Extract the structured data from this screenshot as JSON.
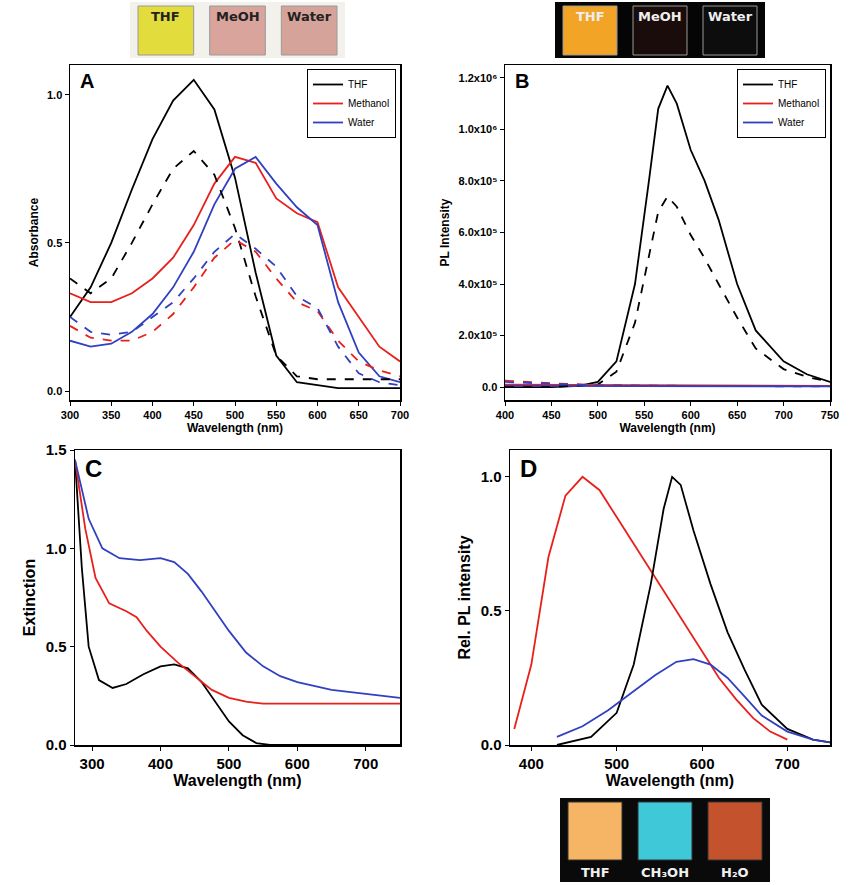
{
  "chart_data": [
    {
      "type": "line",
      "annotations": [
        "A"
      ],
      "x_label": "Wavelength (nm)",
      "y_label": "Absorbance",
      "photo": {
        "labels": [
          "THF",
          "MeOH",
          "Water"
        ],
        "colors": [
          "#e2dc3c",
          "#d9a49b",
          "#d6a39a"
        ]
      },
      "legend": "upper right",
      "xlim": [
        300,
        700
      ],
      "xticks": [
        300,
        350,
        400,
        450,
        500,
        550,
        600,
        650,
        700
      ],
      "ylim": [
        -0.03,
        1.1
      ],
      "yticks": [
        {
          "value": 0,
          "label": "0.0"
        },
        {
          "value": 0.5,
          "label": "0.5"
        },
        {
          "value": 1,
          "label": "1.0"
        }
      ],
      "series": [
        {
          "name": "THF",
          "color": "#000000",
          "line_style": "solid",
          "x": [
            300,
            325,
            350,
            375,
            400,
            425,
            450,
            475,
            500,
            525,
            550,
            575,
            600,
            625,
            650,
            675,
            700
          ],
          "values": [
            0.25,
            0.35,
            0.5,
            0.68,
            0.85,
            0.98,
            1.05,
            0.95,
            0.72,
            0.4,
            0.12,
            0.03,
            0.02,
            0.01,
            0.01,
            0.01,
            0.01
          ]
        },
        {
          "name": "Methanol",
          "color": "#e8201c",
          "line_style": "solid",
          "x": [
            300,
            325,
            350,
            375,
            400,
            425,
            450,
            475,
            500,
            525,
            550,
            575,
            600,
            625,
            650,
            675,
            700
          ],
          "values": [
            0.33,
            0.3,
            0.3,
            0.33,
            0.38,
            0.45,
            0.56,
            0.7,
            0.79,
            0.77,
            0.65,
            0.6,
            0.57,
            0.35,
            0.25,
            0.15,
            0.1
          ]
        },
        {
          "name": "Water",
          "color": "#3040c0",
          "line_style": "solid",
          "x": [
            300,
            325,
            350,
            375,
            400,
            425,
            450,
            475,
            500,
            525,
            550,
            575,
            600,
            625,
            650,
            675,
            700
          ],
          "values": [
            0.17,
            0.15,
            0.16,
            0.2,
            0.26,
            0.35,
            0.47,
            0.63,
            0.75,
            0.79,
            0.7,
            0.62,
            0.56,
            0.3,
            0.13,
            0.05,
            0.03
          ]
        },
        {
          "color": "#000000",
          "line_style": "dashed",
          "x": [
            300,
            325,
            350,
            375,
            400,
            425,
            450,
            475,
            500,
            525,
            550,
            575,
            600,
            625,
            650,
            675,
            700
          ],
          "values": [
            0.38,
            0.33,
            0.38,
            0.5,
            0.63,
            0.75,
            0.81,
            0.73,
            0.55,
            0.32,
            0.12,
            0.05,
            0.04,
            0.04,
            0.04,
            0.04,
            0.04
          ]
        },
        {
          "color": "#e8201c",
          "line_style": "dashed",
          "x": [
            300,
            325,
            350,
            375,
            400,
            425,
            450,
            475,
            500,
            525,
            550,
            575,
            600,
            625,
            650,
            675,
            700
          ],
          "values": [
            0.22,
            0.18,
            0.17,
            0.17,
            0.2,
            0.26,
            0.35,
            0.45,
            0.51,
            0.47,
            0.38,
            0.3,
            0.27,
            0.17,
            0.1,
            0.07,
            0.05
          ]
        },
        {
          "color": "#3040c0",
          "line_style": "dashed",
          "x": [
            300,
            325,
            350,
            375,
            400,
            425,
            450,
            475,
            500,
            525,
            550,
            575,
            600,
            625,
            650,
            675,
            700
          ],
          "values": [
            0.25,
            0.2,
            0.19,
            0.2,
            0.25,
            0.3,
            0.38,
            0.47,
            0.53,
            0.48,
            0.42,
            0.32,
            0.28,
            0.15,
            0.06,
            0.03,
            0.02
          ]
        }
      ]
    },
    {
      "type": "line",
      "annotations": [
        "B"
      ],
      "x_label": "Wavelength (nm)",
      "y_label": "PL Intensity",
      "photo": {
        "labels": [
          "THF",
          "MeOH",
          "Water"
        ],
        "colors": [
          "#f2a427",
          "#1a0c0a",
          "#0d0d0d"
        ]
      },
      "legend": "upper right",
      "xlim": [
        400,
        750
      ],
      "xticks": [
        400,
        450,
        500,
        550,
        600,
        650,
        700,
        750
      ],
      "ylim": [
        -50000,
        1250000
      ],
      "yticks": [
        {
          "value": 0,
          "label": "0.0"
        },
        {
          "value": 200000,
          "label": "2.0x10⁵"
        },
        {
          "value": 400000,
          "label": "4.0x10⁵"
        },
        {
          "value": 600000,
          "label": "6.0x10⁵"
        },
        {
          "value": 800000,
          "label": "8.0x10⁵"
        },
        {
          "value": 1000000,
          "label": "1.0x10⁶"
        },
        {
          "value": 1200000,
          "label": "1.2x10⁶"
        }
      ],
      "series": [
        {
          "name": "THF",
          "color": "#000000",
          "line_style": "solid",
          "x": [
            400,
            450,
            480,
            500,
            520,
            540,
            555,
            565,
            575,
            585,
            600,
            615,
            630,
            650,
            670,
            700,
            725,
            750
          ],
          "values": [
            0,
            0,
            5000,
            20000,
            100000,
            400000,
            800000,
            1080000,
            1170000,
            1100000,
            920000,
            800000,
            650000,
            400000,
            220000,
            100000,
            50000,
            20000
          ]
        },
        {
          "name": "Methanol",
          "color": "#e8201c",
          "line_style": "solid",
          "x": [
            400,
            500,
            600,
            700,
            750
          ],
          "values": [
            10000,
            8000,
            6000,
            5000,
            5000
          ]
        },
        {
          "name": "Water",
          "color": "#3040c0",
          "line_style": "solid",
          "x": [
            400,
            500,
            600,
            700,
            750
          ],
          "values": [
            5000,
            4000,
            3000,
            3000,
            3000
          ]
        },
        {
          "color": "#000000",
          "line_style": "dashed",
          "x": [
            400,
            450,
            500,
            520,
            540,
            555,
            565,
            575,
            585,
            600,
            615,
            630,
            650,
            670,
            700,
            725,
            750
          ],
          "values": [
            0,
            0,
            10000,
            60000,
            250000,
            500000,
            680000,
            740000,
            700000,
            590000,
            500000,
            400000,
            270000,
            150000,
            70000,
            40000,
            20000
          ]
        },
        {
          "color": "#e8201c",
          "line_style": "dashed",
          "x": [
            400,
            450,
            500,
            600,
            750
          ],
          "values": [
            25000,
            15000,
            8000,
            5000,
            4000
          ]
        },
        {
          "color": "#3040c0",
          "line_style": "dashed",
          "x": [
            400,
            450,
            500,
            600,
            750
          ],
          "values": [
            20000,
            12000,
            6000,
            4000,
            3000
          ]
        }
      ]
    },
    {
      "type": "line",
      "annotations": [
        "C"
      ],
      "x_label": "Wavelength (nm)",
      "y_label": "Extinction",
      "xlim": [
        275,
        750
      ],
      "xticks": [
        300,
        400,
        500,
        600,
        700
      ],
      "ylim": [
        0,
        1.5
      ],
      "yticks": [
        {
          "value": 0,
          "label": "0.0"
        },
        {
          "value": 0.5,
          "label": "0.5"
        },
        {
          "value": 1,
          "label": "1.0"
        },
        {
          "value": 1.5,
          "label": "1.5"
        }
      ],
      "series": [
        {
          "color": "#000000",
          "line_style": "solid",
          "x": [
            275,
            285,
            295,
            310,
            330,
            350,
            375,
            400,
            420,
            440,
            460,
            480,
            500,
            520,
            540,
            560,
            750
          ],
          "values": [
            1.45,
            0.9,
            0.5,
            0.33,
            0.29,
            0.31,
            0.36,
            0.4,
            0.41,
            0.39,
            0.32,
            0.22,
            0.12,
            0.05,
            0.01,
            0,
            0
          ]
        },
        {
          "color": "#e8201c",
          "line_style": "solid",
          "x": [
            275,
            290,
            305,
            325,
            350,
            365,
            380,
            400,
            425,
            450,
            475,
            500,
            525,
            550,
            600,
            650,
            700,
            750
          ],
          "values": [
            1.45,
            1.1,
            0.85,
            0.72,
            0.68,
            0.65,
            0.58,
            0.5,
            0.42,
            0.35,
            0.28,
            0.24,
            0.22,
            0.21,
            0.21,
            0.21,
            0.21,
            0.21
          ]
        },
        {
          "color": "#3040c0",
          "line_style": "solid",
          "x": [
            275,
            295,
            315,
            340,
            370,
            400,
            420,
            440,
            460,
            480,
            500,
            525,
            550,
            575,
            600,
            650,
            700,
            750
          ],
          "values": [
            1.45,
            1.15,
            1.0,
            0.95,
            0.94,
            0.95,
            0.93,
            0.87,
            0.78,
            0.68,
            0.58,
            0.47,
            0.4,
            0.35,
            0.32,
            0.28,
            0.26,
            0.24
          ]
        }
      ]
    },
    {
      "type": "line",
      "annotations": [
        "D"
      ],
      "x_label": "Wavelength (nm)",
      "y_label": "Rel. PL intensity",
      "photo": {
        "labels": [
          "THF",
          "CH₃OH",
          "H₂O"
        ],
        "colors": [
          "#f6b565",
          "#3fc8d8",
          "#c4522c"
        ]
      },
      "xlim": [
        375,
        750
      ],
      "xticks": [
        400,
        500,
        600,
        700
      ],
      "ylim": [
        0,
        1.1
      ],
      "yticks": [
        {
          "value": 0,
          "label": "0.0"
        },
        {
          "value": 0.5,
          "label": "0.5"
        },
        {
          "value": 1,
          "label": "1.0"
        }
      ],
      "series": [
        {
          "color": "#e8201c",
          "line_style": "solid",
          "x": [
            380,
            400,
            420,
            440,
            460,
            480,
            500,
            520,
            540,
            560,
            580,
            600,
            620,
            640,
            660,
            680,
            700
          ],
          "values": [
            0.06,
            0.3,
            0.7,
            0.93,
            1.0,
            0.95,
            0.85,
            0.75,
            0.65,
            0.55,
            0.45,
            0.35,
            0.25,
            0.17,
            0.1,
            0.05,
            0.02
          ]
        },
        {
          "color": "#000000",
          "line_style": "solid",
          "x": [
            430,
            470,
            500,
            520,
            540,
            555,
            565,
            575,
            590,
            610,
            630,
            650,
            670,
            700,
            730,
            750
          ],
          "values": [
            0,
            0.03,
            0.12,
            0.3,
            0.6,
            0.88,
            1.0,
            0.97,
            0.8,
            0.6,
            0.42,
            0.28,
            0.15,
            0.06,
            0.02,
            0.01
          ]
        },
        {
          "color": "#3040c0",
          "line_style": "solid",
          "x": [
            430,
            460,
            490,
            520,
            545,
            570,
            590,
            610,
            630,
            650,
            670,
            700,
            730,
            750
          ],
          "values": [
            0.03,
            0.07,
            0.13,
            0.2,
            0.26,
            0.31,
            0.32,
            0.3,
            0.25,
            0.18,
            0.11,
            0.05,
            0.02,
            0.01
          ]
        }
      ]
    }
  ]
}
